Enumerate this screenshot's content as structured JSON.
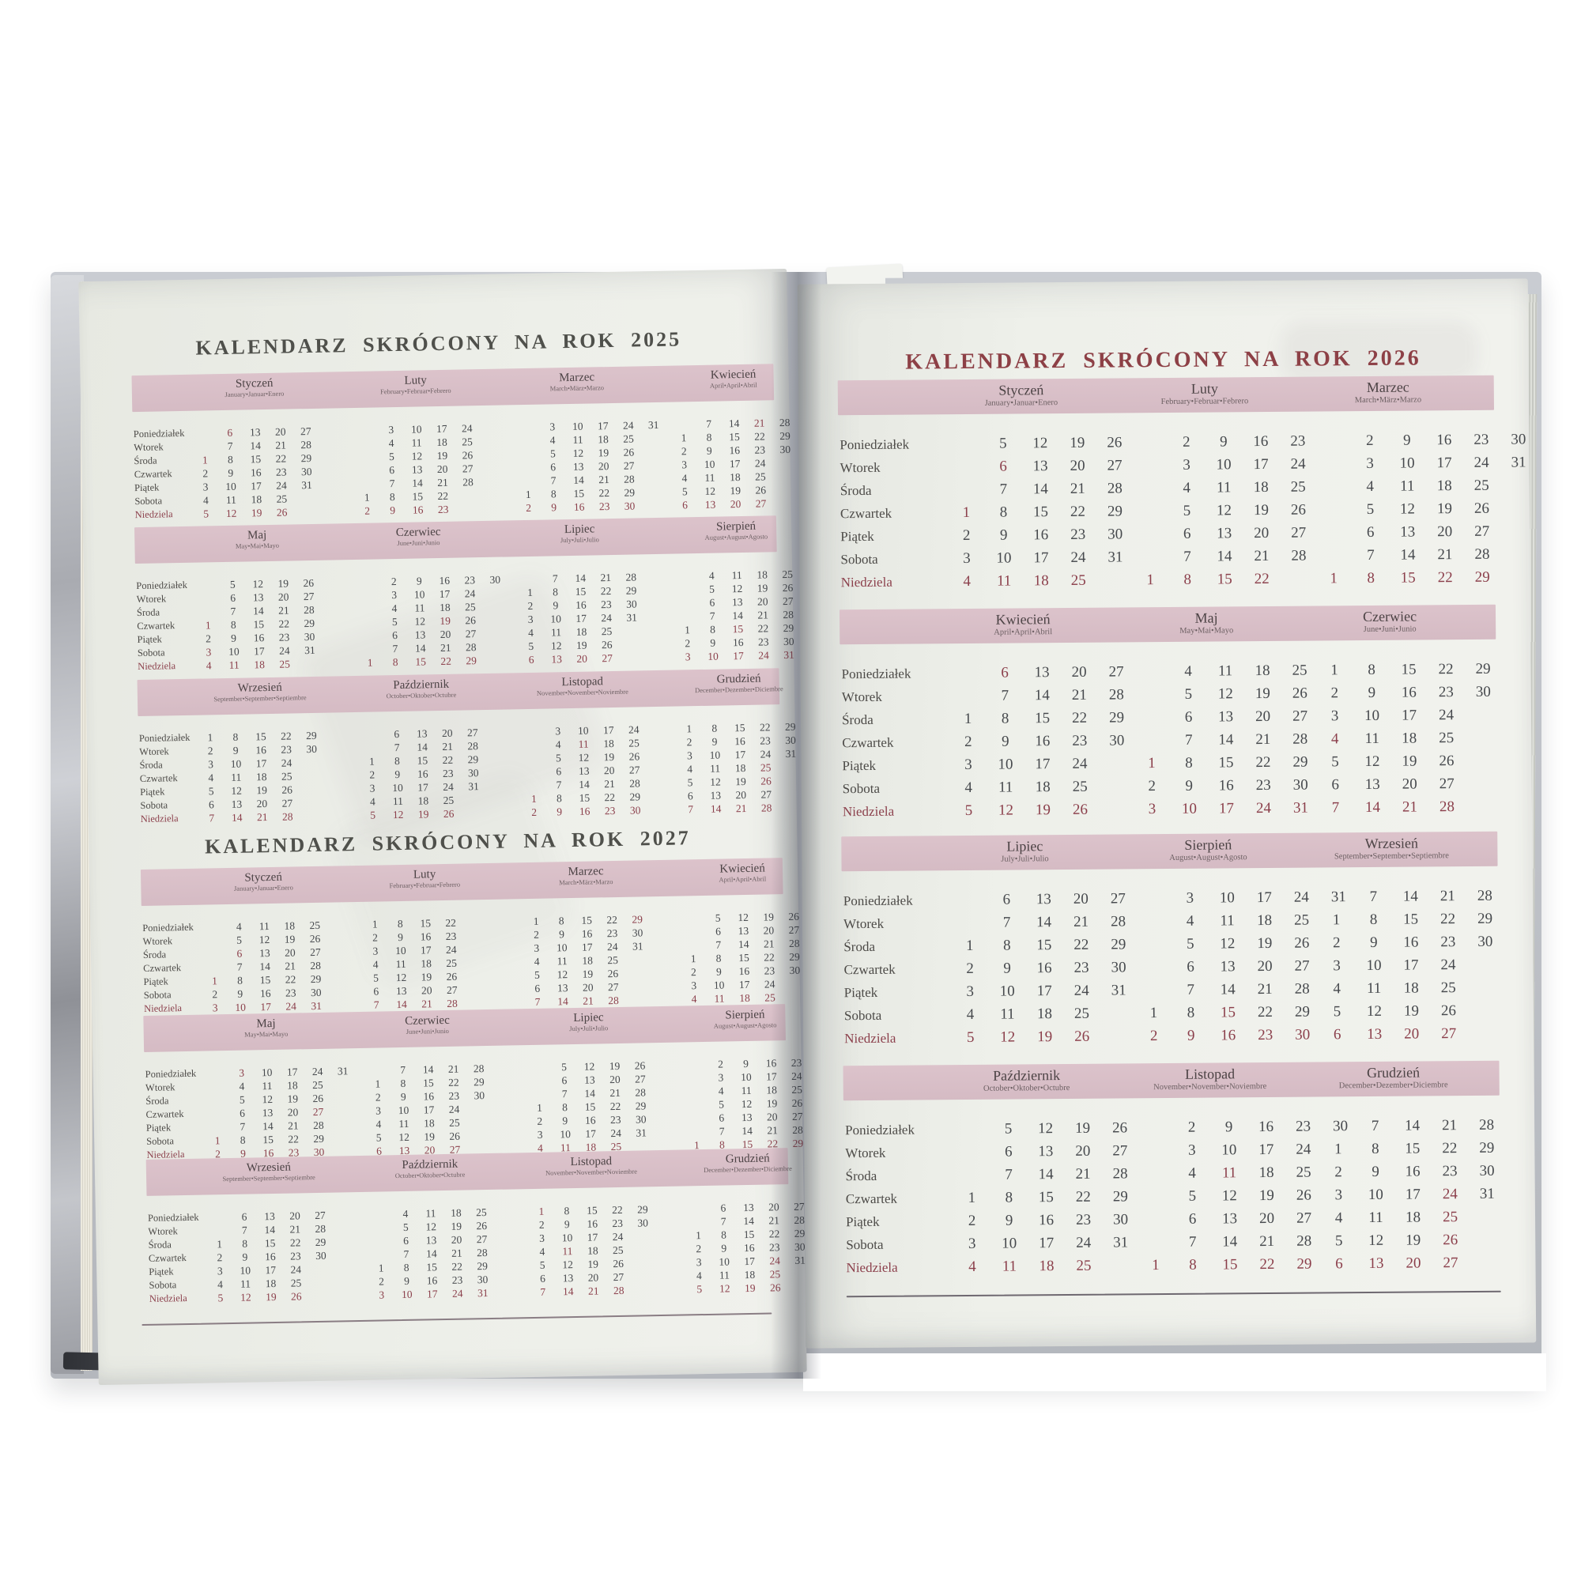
{
  "palette": {
    "band_pink": "#d9bfc7",
    "sunday_holiday_maroon": "#8b3f4b",
    "number_ink": "#46494d",
    "title_left_color": "#4f504b",
    "title_right_color": "#8d4046",
    "rule_color": "#8a7d84",
    "page_cream": "#edeee8",
    "cover_gray": "#c3c6cc"
  },
  "weekdays": [
    "Poniedziałek",
    "Wtorek",
    "Środa",
    "Czwartek",
    "Piątek",
    "Sobota",
    "Niedziela"
  ],
  "pages": {
    "left": {
      "years": [
        {
          "title": "KALENDARZ SKRÓCONY NA ROK 2025",
          "blocks": [
            [
              {
                "name": "Styczeń",
                "sub": "January•Januar•Enero",
                "rows": [
                  ". *6 13 20 27",
                  ". 7 14 21 28",
                  "*1 8 15 22 29",
                  "2 9 16 23 30",
                  "3 10 17 24 31",
                  "4 11 18 25",
                  "5 12 19 26"
                ]
              },
              {
                "name": "Luty",
                "sub": "February•Februar•Febrero",
                "rows": [
                  ". 3 10 17 24",
                  ". 4 11 18 25",
                  ". 5 12 19 26",
                  ". 6 13 20 27",
                  ". 7 14 21 28",
                  "1 8 15 22",
                  "2 9 16 23"
                ]
              },
              {
                "name": "Marzec",
                "sub": "March•März•Marzo",
                "rows": [
                  ". 3 10 17 24 31",
                  ". 4 11 18 25",
                  ". 5 12 19 26",
                  ". 6 13 20 27",
                  ". 7 14 21 28",
                  "1 8 15 22 29",
                  "2 9 16 23 30"
                ]
              },
              {
                "name": "Kwiecień",
                "sub": "April•April•Abril",
                "rows": [
                  ". 7 14 *21 28",
                  "1 8 15 22 29",
                  "2 9 16 23 30",
                  "3 10 17 24",
                  "4 11 18 25",
                  "5 12 19 26",
                  "6 13 20 27"
                ]
              }
            ],
            [
              {
                "name": "Maj",
                "sub": "May•Mai•Mayo",
                "rows": [
                  ". 5 12 19 26",
                  ". 6 13 20 27",
                  ". 7 14 21 28",
                  "*1 8 15 22 29",
                  "2 9 16 23 30",
                  "*3 10 17 24 31",
                  "4 11 18 25"
                ]
              },
              {
                "name": "Czerwiec",
                "sub": "June•Juni•Junio",
                "rows": [
                  ". 2 9 16 23 30",
                  ". 3 10 17 24",
                  ". 4 11 18 25",
                  ". 5 12 *19 26",
                  ". 6 13 20 27",
                  ". 7 14 21 28",
                  "1 8 15 22 29"
                ]
              },
              {
                "name": "Lipiec",
                "sub": "July•Juli•Julio",
                "rows": [
                  ". 7 14 21 28",
                  "1 8 15 22 29",
                  "2 9 16 23 30",
                  "3 10 17 24 31",
                  "4 11 18 25",
                  "5 12 19 26",
                  "6 13 20 27"
                ]
              },
              {
                "name": "Sierpień",
                "sub": "August•August•Agosto",
                "rows": [
                  ". 4 11 18 25",
                  ". 5 12 19 26",
                  ". 6 13 20 27",
                  ". 7 14 21 28",
                  "1 8 *15 22 29",
                  "2 9 16 23 30",
                  "3 10 17 24 31"
                ]
              }
            ],
            [
              {
                "name": "Wrzesień",
                "sub": "September•September•Septiembre",
                "rows": [
                  "1 8 15 22 29",
                  "2 9 16 23 30",
                  "3 10 17 24",
                  "4 11 18 25",
                  "5 12 19 26",
                  "6 13 20 27",
                  "7 14 21 28"
                ]
              },
              {
                "name": "Październik",
                "sub": "October•Oktober•Octubre",
                "rows": [
                  ". 6 13 20 27",
                  ". 7 14 21 28",
                  "1 8 15 22 29",
                  "2 9 16 23 30",
                  "3 10 17 24 31",
                  "4 11 18 25",
                  "5 12 19 26"
                ]
              },
              {
                "name": "Listopad",
                "sub": "November•November•Noviembre",
                "rows": [
                  ". 3 10 17 24",
                  ". 4 *11 18 25",
                  ". 5 12 19 26",
                  ". 6 13 20 27",
                  ". 7 14 21 28",
                  "*1 8 15 22 29",
                  "2 9 16 23 30"
                ]
              },
              {
                "name": "Grudzień",
                "sub": "December•Dezember•Diciembre",
                "rows": [
                  "1 8 15 22 29",
                  "2 9 16 23 30",
                  "3 10 17 24 31",
                  "4 11 18 *25",
                  "5 12 19 *26",
                  "6 13 20 27",
                  "7 14 21 28"
                ]
              }
            ]
          ]
        },
        {
          "title": "KALENDARZ SKRÓCONY NA ROK 2027",
          "blocks": [
            [
              {
                "name": "Styczeń",
                "sub": "January•Januar•Enero",
                "rows": [
                  ". 4 11 18 25",
                  ". 5 12 19 26",
                  ". *6 13 20 27",
                  ". 7 14 21 28",
                  "*1 8 15 22 29",
                  "2 9 16 23 30",
                  "3 10 17 24 31"
                ]
              },
              {
                "name": "Luty",
                "sub": "February•Februar•Febrero",
                "rows": [
                  "1 8 15 22",
                  "2 9 16 23",
                  "3 10 17 24",
                  "4 11 18 25",
                  "5 12 19 26",
                  "6 13 20 27",
                  "7 14 21 28"
                ]
              },
              {
                "name": "Marzec",
                "sub": "March•März•Marzo",
                "rows": [
                  "1 8 15 22 *29",
                  "2 9 16 23 30",
                  "3 10 17 24 31",
                  "4 11 18 25",
                  "5 12 19 26",
                  "6 13 20 27",
                  "7 14 21 28"
                ]
              },
              {
                "name": "Kwiecień",
                "sub": "April•April•Abril",
                "rows": [
                  ". 5 12 19 26",
                  ". 6 13 20 27",
                  ". 7 14 21 28",
                  "1 8 15 22 29",
                  "2 9 16 23 30",
                  "3 10 17 24",
                  "4 11 18 25"
                ]
              }
            ],
            [
              {
                "name": "Maj",
                "sub": "May•Mai•Mayo",
                "rows": [
                  ". *3 10 17 24 31",
                  ". 4 11 18 25",
                  ". 5 12 19 26",
                  ". 6 13 20 *27",
                  ". 7 14 21 28",
                  "*1 8 15 22 29",
                  "2 9 16 23 30"
                ]
              },
              {
                "name": "Czerwiec",
                "sub": "June•Juni•Junio",
                "rows": [
                  ". 7 14 21 28",
                  "1 8 15 22 29",
                  "2 9 16 23 30",
                  "3 10 17 24",
                  "4 11 18 25",
                  "5 12 19 26",
                  "6 13 20 27"
                ]
              },
              {
                "name": "Lipiec",
                "sub": "July•Juli•Julio",
                "rows": [
                  ". 5 12 19 26",
                  ". 6 13 20 27",
                  ". 7 14 21 28",
                  "1 8 15 22 29",
                  "2 9 16 23 30",
                  "3 10 17 24 31",
                  "4 11 18 25"
                ]
              },
              {
                "name": "Sierpień",
                "sub": "August•August•Agosto",
                "rows": [
                  ". 2 9 16 23 30",
                  ". 3 10 17 24 31",
                  ". 4 11 18 25",
                  ". 5 12 19 26",
                  ". 6 13 20 27",
                  ". 7 14 21 28",
                  "1 8 *15 22 29"
                ]
              }
            ],
            [
              {
                "name": "Wrzesień",
                "sub": "September•September•Septiembre",
                "rows": [
                  ". 6 13 20 27",
                  ". 7 14 21 28",
                  "1 8 15 22 29",
                  "2 9 16 23 30",
                  "3 10 17 24",
                  "4 11 18 25",
                  "5 12 19 26"
                ]
              },
              {
                "name": "Październik",
                "sub": "October•Oktober•Octubre",
                "rows": [
                  ". 4 11 18 25",
                  ". 5 12 19 26",
                  ". 6 13 20 27",
                  ". 7 14 21 28",
                  "1 8 15 22 29",
                  "2 9 16 23 30",
                  "3 10 17 24 31"
                ]
              },
              {
                "name": "Listopad",
                "sub": "November•November•Noviembre",
                "rows": [
                  "*1 8 15 22 29",
                  "2 9 16 23 30",
                  "3 10 17 24",
                  "4 *11 18 25",
                  "5 12 19 26",
                  "6 13 20 27",
                  "7 14 21 28"
                ]
              },
              {
                "name": "Grudzień",
                "sub": "December•Dezember•Diciembre",
                "rows": [
                  ". 6 13 20 27",
                  ". 7 14 21 28",
                  "1 8 15 22 29",
                  "2 9 16 23 30",
                  "3 10 17 *24 31",
                  "4 11 18 *25",
                  "5 12 19 26"
                ]
              }
            ]
          ]
        }
      ]
    },
    "right": {
      "year": {
        "title": "KALENDARZ SKRÓCONY NA ROK 2026",
        "blocks": [
          [
            {
              "name": "Styczeń",
              "sub": "January•Januar•Enero",
              "rows": [
                ". 5 12 19 26",
                ". *6 13 20 27",
                ". 7 14 21 28",
                "*1 8 15 22 29",
                "2 9 16 23 30",
                "3 10 17 24 31",
                "4 11 18 25"
              ]
            },
            {
              "name": "Luty",
              "sub": "February•Februar•Febrero",
              "rows": [
                ". 2 9 16 23",
                ". 3 10 17 24",
                ". 4 11 18 25",
                ". 5 12 19 26",
                ". 6 13 20 27",
                ". 7 14 21 28",
                "1 8 15 22"
              ]
            },
            {
              "name": "Marzec",
              "sub": "March•März•Marzo",
              "rows": [
                ". 2 9 16 23 30",
                ". 3 10 17 24 31",
                ". 4 11 18 25",
                ". 5 12 19 26",
                ". 6 13 20 27",
                ". 7 14 21 28",
                "1 8 15 22 29"
              ]
            }
          ],
          [
            {
              "name": "Kwiecień",
              "sub": "April•April•Abril",
              "rows": [
                ". *6 13 20 27",
                ". 7 14 21 28",
                "1 8 15 22 29",
                "2 9 16 23 30",
                "3 10 17 24",
                "4 11 18 25",
                "5 12 19 26"
              ]
            },
            {
              "name": "Maj",
              "sub": "May•Mai•Mayo",
              "rows": [
                ". 4 11 18 25",
                ". 5 12 19 26",
                ". 6 13 20 27",
                ". 7 14 21 28",
                "*1 8 15 22 29",
                "2 9 16 23 30",
                "3 10 17 24 31"
              ]
            },
            {
              "name": "Czerwiec",
              "sub": "June•Juni•Junio",
              "rows": [
                "1 8 15 22 29",
                "2 9 16 23 30",
                "3 10 17 24",
                "*4 11 18 25",
                "5 12 19 26",
                "6 13 20 27",
                "7 14 21 28"
              ]
            }
          ],
          [
            {
              "name": "Lipiec",
              "sub": "July•Juli•Julio",
              "rows": [
                ". 6 13 20 27",
                ". 7 14 21 28",
                "1 8 15 22 29",
                "2 9 16 23 30",
                "3 10 17 24 31",
                "4 11 18 25",
                "5 12 19 26"
              ]
            },
            {
              "name": "Sierpień",
              "sub": "August•August•Agosto",
              "rows": [
                ". 3 10 17 24 31",
                ". 4 11 18 25",
                ". 5 12 19 26",
                ". 6 13 20 27",
                ". 7 14 21 28",
                "1 8 *15 22 29",
                "2 9 16 23 30"
              ]
            },
            {
              "name": "Wrzesień",
              "sub": "September•September•Septiembre",
              "rows": [
                ". 7 14 21 28",
                "1 8 15 22 29",
                "2 9 16 23 30",
                "3 10 17 24",
                "4 11 18 25",
                "5 12 19 26",
                "6 13 20 27"
              ]
            }
          ],
          [
            {
              "name": "Październik",
              "sub": "October•Oktober•Octubre",
              "rows": [
                ". 5 12 19 26",
                ". 6 13 20 27",
                ". 7 14 21 28",
                "1 8 15 22 29",
                "2 9 16 23 30",
                "3 10 17 24 31",
                "4 11 18 25"
              ]
            },
            {
              "name": "Listopad",
              "sub": "November•November•Noviembre",
              "rows": [
                ". 2 9 16 23 30",
                ". 3 10 17 24",
                ". 4 *11 18 25",
                ". 5 12 19 26",
                ". 6 13 20 27",
                ". 7 14 21 28",
                "*1 8 15 22 29"
              ]
            },
            {
              "name": "Grudzień",
              "sub": "December•Dezember•Diciembre",
              "rows": [
                ". 7 14 21 28",
                "1 8 15 22 29",
                "2 9 16 23 30",
                "3 10 17 *24 31",
                "4 11 18 *25",
                "5 12 19 *26",
                "6 13 20 27"
              ]
            }
          ]
        ]
      }
    }
  }
}
